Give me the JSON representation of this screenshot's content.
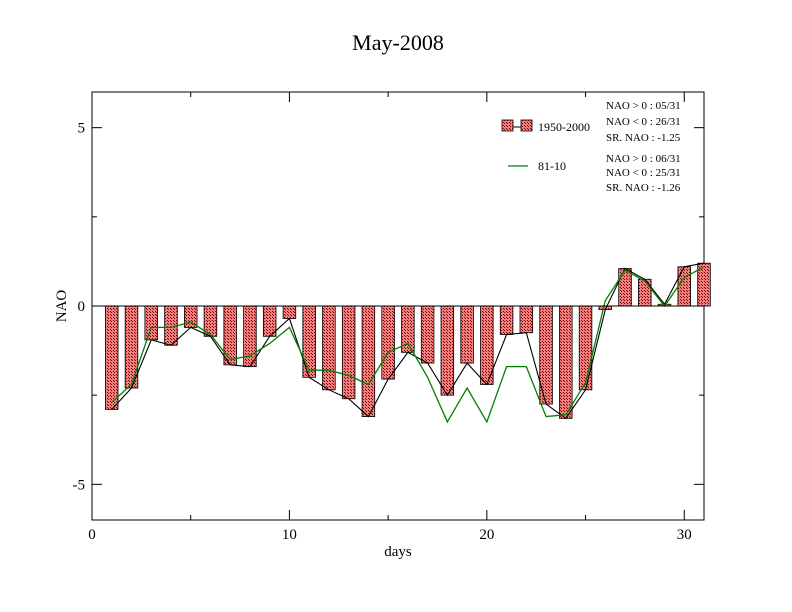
{
  "chart_data": {
    "type": "bar",
    "title": "May-2008",
    "xlabel": "days",
    "ylabel": "NAO",
    "xlim": [
      0,
      31
    ],
    "ylim": [
      -6,
      6
    ],
    "x_ticks": [
      0,
      10,
      20,
      30
    ],
    "y_ticks": [
      -5,
      0,
      5
    ],
    "grid": false,
    "legend_position": "top-right",
    "x": [
      1,
      2,
      3,
      4,
      5,
      6,
      7,
      8,
      9,
      10,
      11,
      12,
      13,
      14,
      15,
      16,
      17,
      18,
      19,
      20,
      21,
      22,
      23,
      24,
      25,
      26,
      27,
      28,
      29,
      30,
      31
    ],
    "series": [
      {
        "name": "1950-2000",
        "kind": "bar+line",
        "values": [
          -2.9,
          -2.3,
          -0.95,
          -1.1,
          -0.6,
          -0.85,
          -1.65,
          -1.7,
          -0.85,
          -0.35,
          -2.0,
          -2.35,
          -2.6,
          -3.1,
          -2.05,
          -1.3,
          -1.6,
          -2.5,
          -1.6,
          -2.2,
          -0.8,
          -0.75,
          -2.75,
          -3.15,
          -2.35,
          -0.1,
          1.05,
          0.75,
          0.05,
          1.1,
          1.2
        ],
        "stats": [
          "NAO > 0 : 05/31",
          "NAO < 0 : 26/31",
          "SR. NAO : -1.25"
        ]
      },
      {
        "name": "81-10",
        "kind": "line",
        "values": [
          -2.7,
          -2.2,
          -0.6,
          -0.6,
          -0.45,
          -0.8,
          -1.5,
          -1.4,
          -1.05,
          -0.6,
          -1.8,
          -1.8,
          -1.95,
          -2.2,
          -1.3,
          -1.05,
          -2.0,
          -3.25,
          -2.3,
          -3.25,
          -1.7,
          -1.7,
          -3.1,
          -3.05,
          -2.15,
          0.15,
          1.0,
          0.7,
          0.0,
          0.8,
          1.1
        ],
        "stats": [
          "NAO > 0 : 06/31",
          "NAO < 0 : 25/31",
          "SR. NAO : -1.26"
        ]
      }
    ],
    "colors": {
      "bar_fill": "#f08080",
      "bar_hatch": "#800000",
      "line_1950_2000": "#000000",
      "line_81_10": "#008000"
    }
  }
}
